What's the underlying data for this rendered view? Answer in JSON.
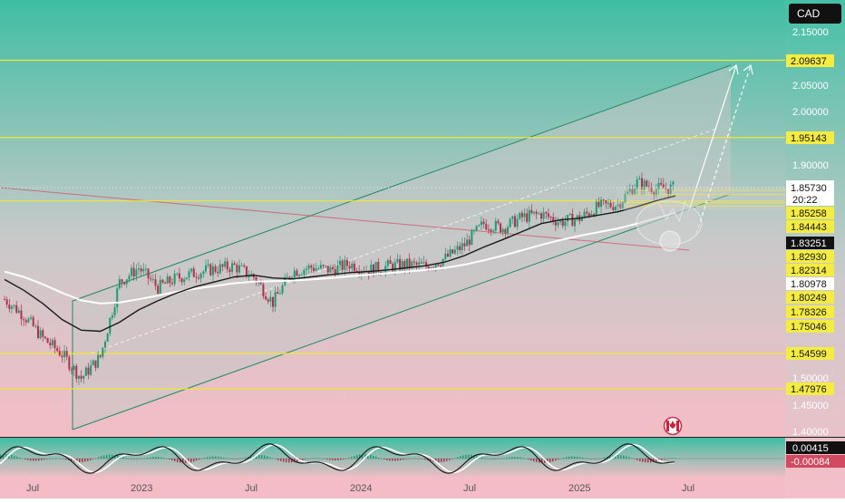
{
  "header": {
    "currency_badge": "CAD"
  },
  "colors": {
    "bg_top": "#3fbea3",
    "bg_mid": "#c9c9c9",
    "bg_bottom": "#f4bdc6",
    "level_line": "#f0e832",
    "channel_line": "#1e8a66",
    "price_line": "#1a1a1a",
    "ma_line": "#ffffff",
    "badge_yellow": "#f5ec42",
    "badge_black": "#111111",
    "badge_red": "#d24a5f"
  },
  "axis": {
    "y_ticks": [
      "2.15000",
      "2.05000",
      "2.00000",
      "1.90000",
      "1.50000",
      "1.45000",
      "1.40000"
    ],
    "x_ticks": [
      "Jul",
      "2023",
      "Jul",
      "2024",
      "Jul",
      "2025",
      "Jul"
    ]
  },
  "price_labels": {
    "l_209637": "2.09637",
    "l_195143": "1.95143",
    "current_price": "1.85730",
    "countdown": "20:22",
    "l_185258": "1.85258",
    "l_184443": "1.84443",
    "l_183251": "1.83251",
    "l_182930": "1.82930",
    "l_182314": "1.82314",
    "l_180978": "1.80978",
    "l_180249": "1.80249",
    "l_178326": "1.78326",
    "l_175046": "1.75046",
    "l_154599": "1.54599",
    "l_147976": "1.47976"
  },
  "oscillator_labels": {
    "positive": "0.00415",
    "negative": "-0.00084"
  },
  "chart_data": {
    "type": "line",
    "title": "",
    "xlabel": "",
    "ylabel": "",
    "ylim": [
      1.38,
      2.18
    ],
    "x": [
      "2022-06",
      "2022-07",
      "2022-08",
      "2022-09",
      "2022-10",
      "2022-11",
      "2022-12",
      "2023-01",
      "2023-02",
      "2023-03",
      "2023-04",
      "2023-05",
      "2023-06",
      "2023-07",
      "2023-08",
      "2023-09",
      "2023-10",
      "2023-11",
      "2023-12",
      "2024-01",
      "2024-02",
      "2024-03",
      "2024-04",
      "2024-05",
      "2024-06",
      "2024-07",
      "2024-08",
      "2024-09",
      "2024-10",
      "2024-11",
      "2024-12",
      "2025-01",
      "2025-02",
      "2025-03",
      "2025-04",
      "2025-05"
    ],
    "series": [
      {
        "values": [
          1.648,
          1.618,
          1.575,
          1.545,
          1.5,
          1.54,
          1.68,
          1.707,
          1.67,
          1.688,
          1.698,
          1.705,
          1.71,
          1.69,
          1.642,
          1.7,
          1.708,
          1.703,
          1.714,
          1.703,
          1.71,
          1.713,
          1.71,
          1.725,
          1.75,
          1.79,
          1.782,
          1.802,
          1.808,
          1.793,
          1.8,
          1.822,
          1.826,
          1.867,
          1.855,
          1.857
        ]
      },
      {
        "values": [
          1.685,
          1.665,
          1.64,
          1.61,
          1.59,
          1.588,
          1.605,
          1.628,
          1.645,
          1.66,
          1.672,
          1.681,
          1.69,
          1.693,
          1.688,
          1.686,
          1.69,
          1.694,
          1.698,
          1.7,
          1.703,
          1.707,
          1.711,
          1.718,
          1.73,
          1.746,
          1.76,
          1.775,
          1.79,
          1.797,
          1.8,
          1.806,
          1.812,
          1.822,
          1.833,
          1.842
        ]
      },
      {
        "values": [
          1.7,
          1.69,
          1.676,
          1.66,
          1.646,
          1.64,
          1.642,
          1.648,
          1.655,
          1.662,
          1.668,
          1.673,
          1.678,
          1.681,
          1.682,
          1.683,
          1.685,
          1.688,
          1.691,
          1.694,
          1.697,
          1.7,
          1.703,
          1.707,
          1.713,
          1.721,
          1.73,
          1.74,
          1.75,
          1.759,
          1.767,
          1.774,
          1.781,
          1.79,
          1.8,
          1.81
        ]
      }
    ],
    "levels": [
      2.09637,
      1.95143,
      1.83251,
      1.54599,
      1.47976
    ]
  }
}
